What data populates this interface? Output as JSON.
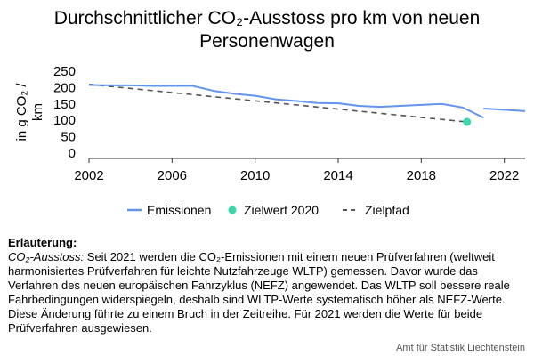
{
  "chart_data": {
    "type": "line",
    "title_line1": "Durchschnittlicher CO₂-Ausstoss pro km von neuen",
    "title_line2": "Personenwagen",
    "ylabel_line1": "in g CO₂ /",
    "ylabel_line2": "km",
    "xlim": [
      2002,
      2023
    ],
    "ylim": [
      0,
      250
    ],
    "xticks": [
      2002,
      2006,
      2010,
      2014,
      2018,
      2022
    ],
    "yticks": [
      0,
      50,
      100,
      150,
      200,
      250
    ],
    "grid": false,
    "legend_position": "bottom",
    "series": [
      {
        "name": "Emissionen",
        "color": "#6495ED",
        "segments": [
          [
            [
              2002,
              208
            ],
            [
              2003,
              207
            ],
            [
              2004,
              207
            ],
            [
              2005,
              205
            ],
            [
              2006,
              205
            ],
            [
              2007,
              205
            ],
            [
              2008,
              190
            ],
            [
              2009,
              181
            ],
            [
              2010,
              175
            ],
            [
              2011,
              164
            ],
            [
              2012,
              159
            ],
            [
              2013,
              153
            ],
            [
              2014,
              152
            ],
            [
              2015,
              144
            ],
            [
              2016,
              141
            ],
            [
              2017,
              144
            ],
            [
              2018,
              147
            ],
            [
              2019,
              150
            ],
            [
              2020,
              139
            ],
            [
              2021,
              108
            ]
          ],
          [
            [
              2021,
              136
            ],
            [
              2022,
              132
            ],
            [
              2023,
              128
            ]
          ]
        ]
      },
      {
        "name": "Zielwert 2020",
        "color": "#3DD6AC",
        "points": [
          [
            2020.2,
            95
          ]
        ]
      },
      {
        "name": "Zielpfad",
        "color": "#555555",
        "dashed": true,
        "points": [
          [
            2002,
            210
          ],
          [
            2020.2,
            95
          ]
        ]
      }
    ]
  },
  "note": {
    "heading": "Erläuterung:",
    "term": "CO₂-Ausstoss:",
    "text": " Seit 2021 werden die CO₂-Emissionen mit einem neuen Prüfverfahren (weltweit harmonisiertes Prüfverfahren für leichte Nutzfahrzeuge WLTP) gemessen. Davor wurde das Verfahren des neuen europäischen Fahrzyklus (NEFZ) angewendet. Das WLTP soll bessere reale Fahrbedingungen widerspiegeln, deshalb sind WLTP-Werte systematisch höher als NEFZ-Werte. Diese Änderung führte zu einem Bruch in der Zeitreihe. Für 2021 werden die Werte für beide Prüfverfahren ausgewiesen."
  },
  "source": "Amt für Statistik Liechtenstein"
}
